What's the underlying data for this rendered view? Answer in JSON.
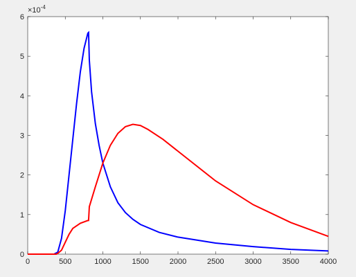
{
  "chart_data": {
    "type": "line",
    "y_exponent": {
      "base": "×10",
      "power": "-4"
    },
    "xlim": [
      0,
      4000
    ],
    "xticks": [
      0,
      500,
      1000,
      1500,
      2000,
      2500,
      3000,
      3500,
      4000
    ],
    "ylim": [
      0,
      6
    ],
    "yticks": [
      0,
      1,
      2,
      3,
      4,
      5,
      6
    ],
    "grid": false,
    "series": [
      {
        "color": "#0000ff",
        "x": [
          0,
          350,
          400,
          450,
          500,
          550,
          600,
          650,
          700,
          750,
          800,
          810,
          820,
          850,
          900,
          950,
          1000,
          1100,
          1200,
          1300,
          1400,
          1500,
          1750,
          2000,
          2500,
          3000,
          3500,
          4000
        ],
        "values": [
          0,
          0,
          0.05,
          0.4,
          1.1,
          2.0,
          2.9,
          3.8,
          4.6,
          5.2,
          5.58,
          5.6,
          4.9,
          4.1,
          3.3,
          2.75,
          2.3,
          1.7,
          1.3,
          1.05,
          0.88,
          0.75,
          0.55,
          0.43,
          0.28,
          0.19,
          0.12,
          0.08
        ]
      },
      {
        "color": "#ff0000",
        "x": [
          0,
          380,
          400,
          450,
          500,
          550,
          600,
          700,
          800,
          810,
          820,
          900,
          1000,
          1100,
          1200,
          1300,
          1400,
          1500,
          1600,
          1800,
          2000,
          2500,
          3000,
          3500,
          4000
        ],
        "values": [
          0,
          0,
          0.02,
          0.1,
          0.3,
          0.5,
          0.65,
          0.78,
          0.85,
          0.85,
          1.2,
          1.7,
          2.3,
          2.75,
          3.05,
          3.22,
          3.28,
          3.25,
          3.15,
          2.9,
          2.6,
          1.85,
          1.25,
          0.8,
          0.45
        ]
      }
    ]
  }
}
